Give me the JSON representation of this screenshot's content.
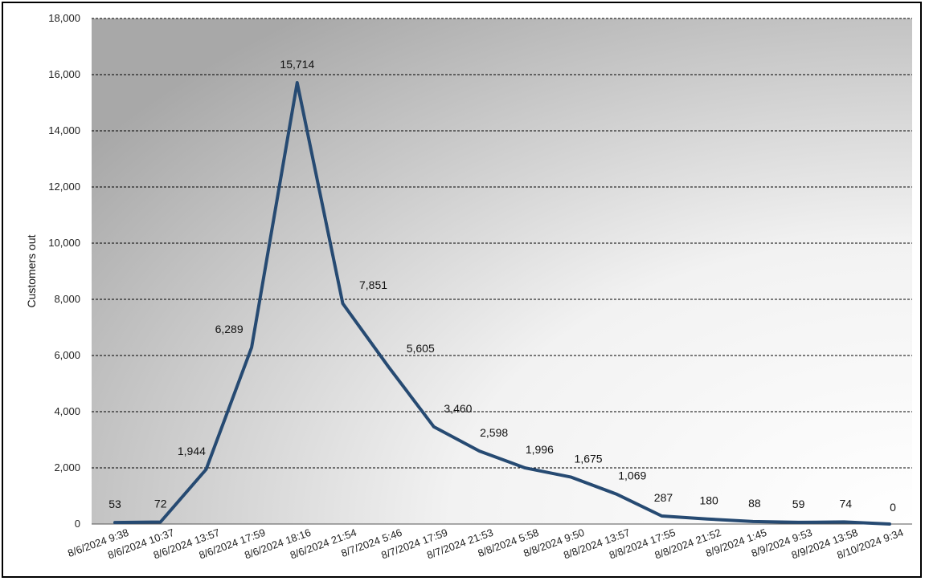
{
  "chart_data": {
    "type": "line",
    "title": "",
    "xlabel": "",
    "ylabel": "Customers out",
    "ylim": [
      0,
      18000
    ],
    "ytick_step": 2000,
    "grid": "horizontal-dashed",
    "categories": [
      "8/6/2024 9:38",
      "8/6/2024 10:37",
      "8/6/2024 13:57",
      "8/6/2024 17:59",
      "8/6/2024 18:16",
      "8/6/2024 21:54",
      "8/7/2024 5:46",
      "8/7/2024 17:59",
      "8/7/2024 21:53",
      "8/8/2024 5:58",
      "8/8/2024 9:50",
      "8/8/2024 13:57",
      "8/8/2024 17:55",
      "8/8/2024 21:52",
      "8/9/2024 1:45",
      "8/9/2024 9:53",
      "8/9/2024 13:58",
      "8/10/2024 9:34"
    ],
    "values": [
      53,
      72,
      1944,
      6289,
      15714,
      7851,
      5605,
      3460,
      2598,
      1996,
      1675,
      1069,
      287,
      180,
      88,
      59,
      74,
      0
    ],
    "data_labels": [
      "53",
      "72",
      "1,944",
      "6,289",
      "15,714",
      "7,851",
      "5,605",
      "3,460",
      "2,598",
      "1,996",
      "1,675",
      "1,069",
      "287",
      "180",
      "88",
      "59",
      "74",
      "0"
    ],
    "line_color": "#264a72"
  }
}
